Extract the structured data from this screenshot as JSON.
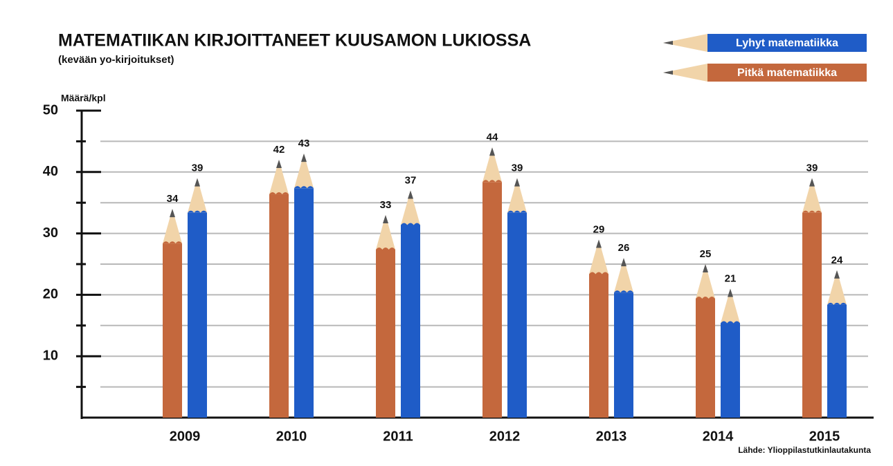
{
  "chart_data": {
    "type": "bar",
    "title": "MATEMATIIKAN KIRJOITTANEET KUUSAMON LUKIOSSA",
    "subtitle": "(kevään yo-kirjoitukset)",
    "y_label": "Määrä/kpl",
    "source": "Lähde: Ylioppilastutkinlautakunta",
    "categories": [
      "2009",
      "2010",
      "2011",
      "2012",
      "2013",
      "2014",
      "2015"
    ],
    "series": [
      {
        "name": "Lyhyt matematiikka",
        "color": "#1f5cc7",
        "values": [
          39,
          43,
          37,
          39,
          26,
          21,
          24
        ]
      },
      {
        "name": "Pitkä matematiikka",
        "color": "#c4683d",
        "values": [
          34,
          42,
          33,
          44,
          29,
          25,
          39
        ]
      }
    ],
    "ylim": [
      0,
      50
    ],
    "yticks": [
      10,
      20,
      30,
      40,
      50
    ],
    "minor_yticks": [
      5,
      15,
      25,
      35,
      45
    ],
    "grid": true,
    "legend": "top-right"
  }
}
